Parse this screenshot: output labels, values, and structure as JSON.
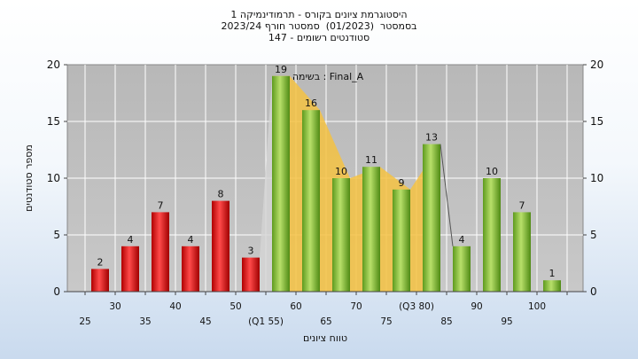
{
  "chart_data": {
    "type": "bar",
    "title_lines": [
      "היסטוגרמת ציונים בקורס - תרמודינמיקה 1",
      "בסמסטר  (01/2023)  סמסטר חורף 2023/24",
      "סטודנטים רשומים - 147"
    ],
    "annotation": "בשימה : Final_A",
    "xlabel": "טווח ציונים",
    "ylabel": "מספר סטודנטים",
    "ylim": [
      0,
      20
    ],
    "yticks": [
      0,
      5,
      10,
      15,
      20
    ],
    "grid": true,
    "legend": "none",
    "bars": [
      {
        "value": 2,
        "color": "#e02a2a"
      },
      {
        "value": 4,
        "color": "#e02a2a"
      },
      {
        "value": 7,
        "color": "#e02a2a"
      },
      {
        "value": 4,
        "color": "#e02a2a"
      },
      {
        "value": 8,
        "color": "#e02a2a"
      },
      {
        "value": 3,
        "color": "#e02a2a"
      },
      {
        "value": 19,
        "color": "#8cc63f"
      },
      {
        "value": 16,
        "color": "#8cc63f"
      },
      {
        "value": 10,
        "color": "#8cc63f"
      },
      {
        "value": 11,
        "color": "#8cc63f"
      },
      {
        "value": 9,
        "color": "#8cc63f"
      },
      {
        "value": 13,
        "color": "#8cc63f"
      },
      {
        "value": 4,
        "color": "#8cc63f"
      },
      {
        "value": 10,
        "color": "#8cc63f"
      },
      {
        "value": 7,
        "color": "#8cc63f"
      },
      {
        "value": 1,
        "color": "#8cc63f"
      }
    ],
    "xticks_row1": [
      "30",
      "40",
      "50",
      "60",
      "70",
      "(Q3 80)",
      "90",
      "100"
    ],
    "xticks_row2": [
      "25",
      "35",
      "45",
      "(Q1 55)",
      "65",
      "75",
      "85",
      "95"
    ],
    "interquartile_shade": {
      "color": "#f5c242",
      "from_bar": 6,
      "to_bar": 11
    }
  }
}
